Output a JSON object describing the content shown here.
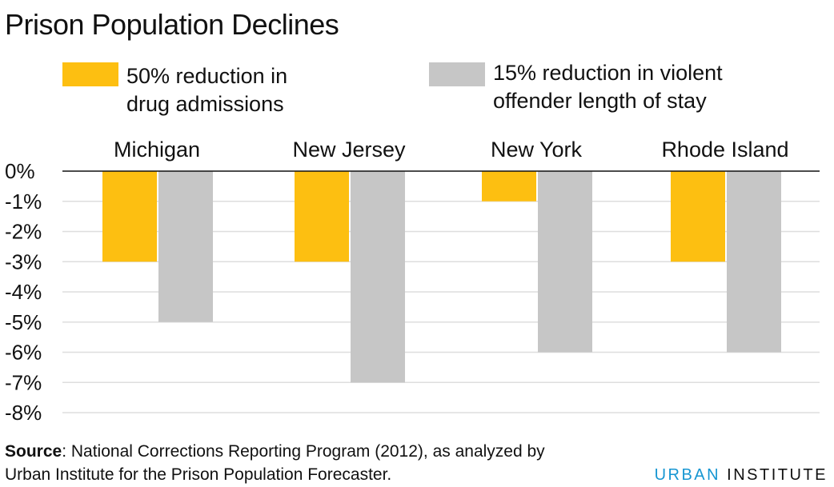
{
  "title": "Prison Population Declines",
  "legend": [
    {
      "label": "50% reduction in\ndrug admissions",
      "color": "#fdbf11"
    },
    {
      "label": "15% reduction in violent\noffender length of stay",
      "color": "#c6c6c6"
    }
  ],
  "chart_data": {
    "type": "bar",
    "categories": [
      "Michigan",
      "New Jersey",
      "New York",
      "Rhode Island"
    ],
    "series": [
      {
        "name": "50% reduction in drug admissions",
        "values": [
          -3,
          -3,
          -1,
          -3
        ],
        "color": "#fdbf11"
      },
      {
        "name": "15% reduction in violent offender length of stay",
        "values": [
          -5,
          -7,
          -6,
          -6
        ],
        "color": "#c6c6c6"
      }
    ],
    "y_ticks": [
      "0%",
      "-1%",
      "-2%",
      "-3%",
      "-4%",
      "-5%",
      "-6%",
      "-7%",
      "-8%"
    ],
    "ylim": [
      -8,
      0
    ],
    "grid": true,
    "legend_position": "top"
  },
  "source": {
    "label": "Source",
    "text": ": National Corrections Reporting Program (2012), as analyzed by Urban Institute for the Prison Population Forecaster."
  },
  "brand": {
    "part1": "URBAN",
    "part2": "INSTITUTE"
  }
}
